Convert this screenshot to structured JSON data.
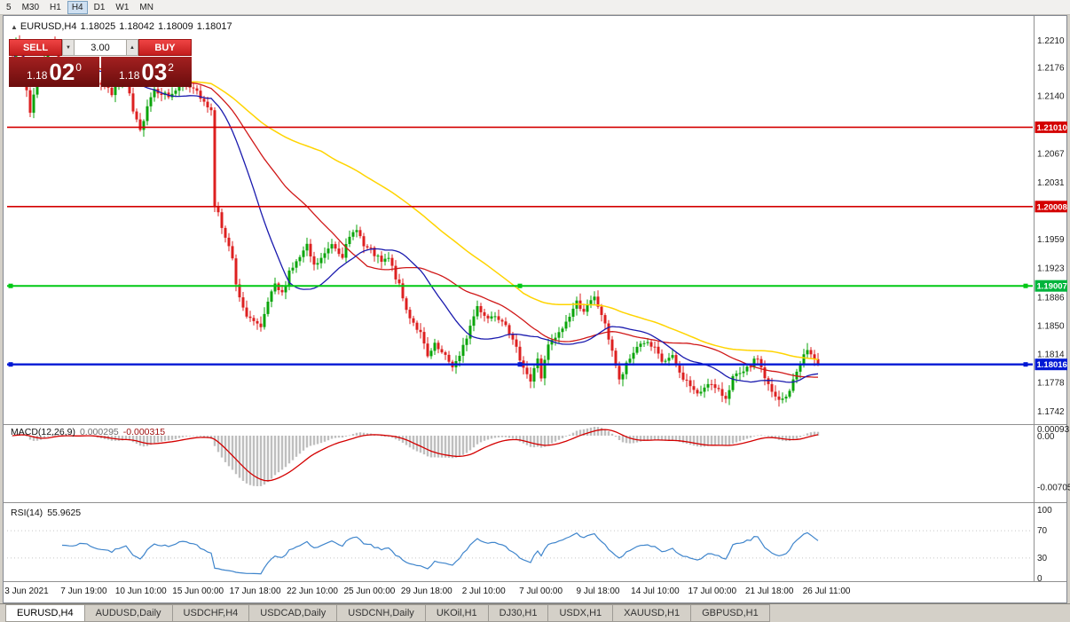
{
  "toolbar": {
    "periods": [
      {
        "label": "5",
        "active": false
      },
      {
        "label": "M30",
        "active": false
      },
      {
        "label": "H1",
        "active": false
      },
      {
        "label": "H4",
        "active": true
      },
      {
        "label": "D1",
        "active": false
      },
      {
        "label": "W1",
        "active": false
      },
      {
        "label": "MN",
        "active": false
      }
    ]
  },
  "chart_header": {
    "symbol": "EURUSD,H4",
    "open": "1.18025",
    "high": "1.18042",
    "low": "1.18009",
    "close": "1.18017"
  },
  "trade_panel": {
    "sell_label": "SELL",
    "buy_label": "BUY",
    "volume": "3.00",
    "sell_price": {
      "figure": "1.18",
      "big": "02",
      "sup": "0"
    },
    "buy_price": {
      "figure": "1.18",
      "big": "03",
      "sup": "2"
    }
  },
  "price_axis": {
    "labels": [
      "1.2210",
      "1.2176",
      "1.2140",
      "1.2067",
      "1.2031",
      "1.1959",
      "1.1923",
      "1.1886",
      "1.1850",
      "1.1814",
      "1.1778",
      "1.1742"
    ],
    "tags": [
      {
        "label": "1.21010",
        "value": 1.2101,
        "color": "#d40000"
      },
      {
        "label": "1.20008",
        "value": 1.20008,
        "color": "#d40000"
      },
      {
        "label": "1.19007",
        "value": 1.19007,
        "color": "#00b43c"
      },
      {
        "label": "1.18016",
        "value": 1.18016,
        "color": "#0018d4"
      }
    ]
  },
  "time_axis": [
    "3 Jun 2021",
    "7 Jun 19:00",
    "10 Jun 10:00",
    "15 Jun 00:00",
    "17 Jun 18:00",
    "22 Jun 10:00",
    "25 Jun 00:00",
    "29 Jun 18:00",
    "2 Jul 10:00",
    "7 Jul 00:00",
    "9 Jul 18:00",
    "14 Jul 10:00",
    "17 Jul 00:00",
    "21 Jul 18:00",
    "26 Jul 11:00"
  ],
  "indicator_panels": {
    "macd": {
      "name": "MACD(12,26,9)",
      "value": "0.000295",
      "signal_value": "-0.000315",
      "axis": [
        {
          "label": "0.00093"
        },
        {
          "label": "0.00"
        },
        {
          "label": "-0.00705"
        }
      ]
    },
    "rsi": {
      "name": "RSI(14)",
      "value": "55.9625",
      "axis": [
        {
          "label": "100",
          "value": 100
        },
        {
          "label": "70",
          "value": 70
        },
        {
          "label": "30",
          "value": 30
        },
        {
          "label": "0",
          "value": 0
        }
      ]
    }
  },
  "tabs": [
    {
      "label": "EURUSD,H4",
      "active": true
    },
    {
      "label": "AUDUSD,Daily",
      "active": false
    },
    {
      "label": "USDCHF,H4",
      "active": false
    },
    {
      "label": "USDCAD,Daily",
      "active": false
    },
    {
      "label": "USDCNH,Daily",
      "active": false
    },
    {
      "label": "UKOil,H1",
      "active": false
    },
    {
      "label": "DJ30,H1",
      "active": false
    },
    {
      "label": "USDX,H1",
      "active": false
    },
    {
      "label": "XAUUSD,H1",
      "active": false
    },
    {
      "label": "GBPUSD,H1",
      "active": false
    }
  ],
  "chart_data": {
    "type": "candlestick",
    "symbol": "EURUSD",
    "timeframe": "H4",
    "bars_total": 228,
    "price_axis_range": {
      "top": 1.2237,
      "bottom": 1.17284
    },
    "up_color": "#0ba50b",
    "down_color": "#dd2020",
    "close_path": [
      [
        0,
        1.2185
      ],
      [
        1,
        1.2215
      ],
      [
        3,
        1.2175
      ],
      [
        5,
        1.212
      ],
      [
        7,
        1.2165
      ],
      [
        9,
        1.2185
      ],
      [
        11,
        1.221
      ],
      [
        13,
        1.218
      ],
      [
        17,
        1.217
      ],
      [
        20,
        1.2185
      ],
      [
        24,
        1.216
      ],
      [
        28,
        1.2145
      ],
      [
        32,
        1.216
      ],
      [
        34,
        1.212
      ],
      [
        36,
        1.2095
      ],
      [
        38,
        1.213
      ],
      [
        40,
        1.215
      ],
      [
        44,
        1.214
      ],
      [
        48,
        1.2155
      ],
      [
        52,
        1.215
      ],
      [
        54,
        1.213
      ],
      [
        56,
        1.2125
      ],
      [
        57,
        1.2
      ],
      [
        58,
        1.1995
      ],
      [
        60,
        1.196
      ],
      [
        62,
        1.1935
      ],
      [
        63,
        1.19
      ],
      [
        65,
        1.187
      ],
      [
        68,
        1.1855
      ],
      [
        70,
        1.1845
      ],
      [
        72,
        1.188
      ],
      [
        74,
        1.19
      ],
      [
        76,
        1.189
      ],
      [
        78,
        1.192
      ],
      [
        80,
        1.193
      ],
      [
        83,
        1.195
      ],
      [
        85,
        1.1925
      ],
      [
        88,
        1.194
      ],
      [
        90,
        1.1955
      ],
      [
        93,
        1.194
      ],
      [
        95,
        1.196
      ],
      [
        97,
        1.1975
      ],
      [
        99,
        1.195
      ],
      [
        101,
        1.1945
      ],
      [
        104,
        1.193
      ],
      [
        106,
        1.1935
      ],
      [
        109,
        1.19
      ],
      [
        111,
        1.187
      ],
      [
        113,
        1.1855
      ],
      [
        115,
        1.184
      ],
      [
        117,
        1.181
      ],
      [
        119,
        1.1825
      ],
      [
        121,
        1.1815
      ],
      [
        124,
        1.18
      ],
      [
        126,
        1.181
      ],
      [
        129,
        1.185
      ],
      [
        131,
        1.1875
      ],
      [
        134,
        1.186
      ],
      [
        136,
        1.1865
      ],
      [
        139,
        1.1855
      ],
      [
        141,
        1.183
      ],
      [
        144,
        1.18
      ],
      [
        146,
        1.178
      ],
      [
        148,
        1.181
      ],
      [
        149,
        1.1785
      ],
      [
        151,
        1.1825
      ],
      [
        154,
        1.184
      ],
      [
        156,
        1.1855
      ],
      [
        159,
        1.188
      ],
      [
        161,
        1.187
      ],
      [
        164,
        1.1885
      ],
      [
        166,
        1.1865
      ],
      [
        169,
        1.182
      ],
      [
        171,
        1.178
      ],
      [
        173,
        1.18
      ],
      [
        176,
        1.1825
      ],
      [
        178,
        1.183
      ],
      [
        181,
        1.182
      ],
      [
        183,
        1.1805
      ],
      [
        186,
        1.181
      ],
      [
        188,
        1.179
      ],
      [
        191,
        1.1775
      ],
      [
        193,
        1.1762
      ],
      [
        196,
        1.178
      ],
      [
        198,
        1.177
      ],
      [
        201,
        1.176
      ],
      [
        203,
        1.1785
      ],
      [
        206,
        1.179
      ],
      [
        208,
        1.18
      ],
      [
        210,
        1.181
      ],
      [
        212,
        1.1785
      ],
      [
        214,
        1.1765
      ],
      [
        216,
        1.1755
      ],
      [
        218,
        1.176
      ],
      [
        220,
        1.178
      ],
      [
        222,
        1.1805
      ],
      [
        224,
        1.182
      ],
      [
        227,
        1.18017
      ]
    ],
    "moving_averages": [
      {
        "name": "ma-slow",
        "type": "sma",
        "period": 88,
        "color": "#ffd400",
        "width": 1.5
      },
      {
        "name": "ma-mid",
        "type": "sma",
        "period": 44,
        "color": "#d01818",
        "width": 1.3
      },
      {
        "name": "ma-fast",
        "type": "sma",
        "period": 22,
        "color": "#1a1aae",
        "width": 1.3
      }
    ],
    "horizontal_lines": [
      {
        "price": 1.2101,
        "color": "#d40000",
        "width": 1.6,
        "handles": false
      },
      {
        "price": 1.20008,
        "color": "#d40000",
        "width": 1.6,
        "handles": false
      },
      {
        "price": 1.19007,
        "color": "#00c814",
        "width": 2,
        "handles": true
      },
      {
        "price": 1.18016,
        "color": "#0018d4",
        "width": 2.4,
        "handles": true
      }
    ],
    "macd": {
      "fast": 12,
      "slow": 26,
      "signal": 9,
      "histogram_color": "#bfbfbf",
      "signal_color": "#d40000",
      "current": 0.000295,
      "signal_current": -0.000315
    },
    "rsi": {
      "period": 14,
      "color": "#3f85cc",
      "levels": [
        70,
        30
      ],
      "current": 55.9625
    },
    "current_price": 1.18016
  }
}
